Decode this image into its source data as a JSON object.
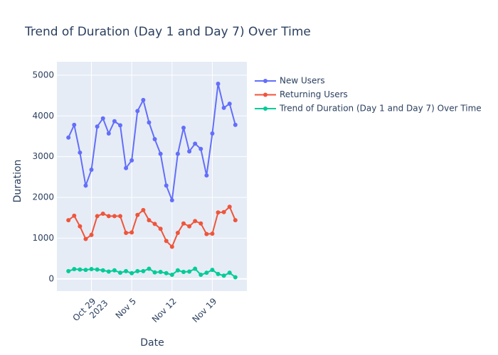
{
  "chart_data": {
    "type": "line",
    "title": "Trend of Duration (Day 1 and Day 7) Over Time",
    "xlabel": "Date",
    "ylabel": "Duration",
    "x": [
      "2023-10-25",
      "2023-10-26",
      "2023-10-27",
      "2023-10-28",
      "2023-10-29",
      "2023-10-30",
      "2023-10-31",
      "2023-11-01",
      "2023-11-02",
      "2023-11-03",
      "2023-11-04",
      "2023-11-05",
      "2023-11-06",
      "2023-11-07",
      "2023-11-08",
      "2023-11-09",
      "2023-11-10",
      "2023-11-11",
      "2023-11-12",
      "2023-11-13",
      "2023-11-14",
      "2023-11-15",
      "2023-11-16",
      "2023-11-17",
      "2023-11-18",
      "2023-11-19",
      "2023-11-20",
      "2023-11-21",
      "2023-11-22",
      "2023-11-23"
    ],
    "series": [
      {
        "name": "New Users",
        "color": "#636efa",
        "values": [
          3470,
          3780,
          3100,
          2290,
          2680,
          3740,
          3940,
          3570,
          3870,
          3770,
          2720,
          2910,
          4120,
          4390,
          3840,
          3430,
          3070,
          2290,
          1930,
          3070,
          3710,
          3130,
          3320,
          3190,
          2540,
          3570,
          4790,
          4200,
          4300,
          3780
        ]
      },
      {
        "name": "Returning Users",
        "color": "#ef553b",
        "values": [
          1440,
          1550,
          1290,
          980,
          1080,
          1540,
          1600,
          1540,
          1540,
          1540,
          1130,
          1140,
          1570,
          1690,
          1440,
          1350,
          1230,
          930,
          790,
          1130,
          1360,
          1290,
          1420,
          1360,
          1100,
          1110,
          1630,
          1640,
          1770,
          1440
        ]
      },
      {
        "name": "Trend of Duration (Day 1 and Day 7) Over Time",
        "color": "#00cc96",
        "values": [
          190,
          240,
          230,
          220,
          240,
          230,
          210,
          180,
          210,
          150,
          190,
          140,
          190,
          190,
          250,
          160,
          170,
          140,
          100,
          210,
          170,
          180,
          250,
          100,
          150,
          220,
          120,
          80,
          150,
          40
        ]
      }
    ],
    "xlim": [
      "2023-10-23",
      "2023-11-25"
    ],
    "xticks": [
      {
        "value": "2023-10-29",
        "label": "Oct 29\n2023"
      },
      {
        "value": "2023-11-05",
        "label": "Nov 5"
      },
      {
        "value": "2023-11-12",
        "label": "Nov 12"
      },
      {
        "value": "2023-11-19",
        "label": "Nov 19"
      }
    ],
    "ylim": [
      -300,
      5330
    ],
    "yticks": [
      0,
      1000,
      2000,
      3000,
      4000,
      5000
    ],
    "grid": true,
    "legend": "right"
  }
}
